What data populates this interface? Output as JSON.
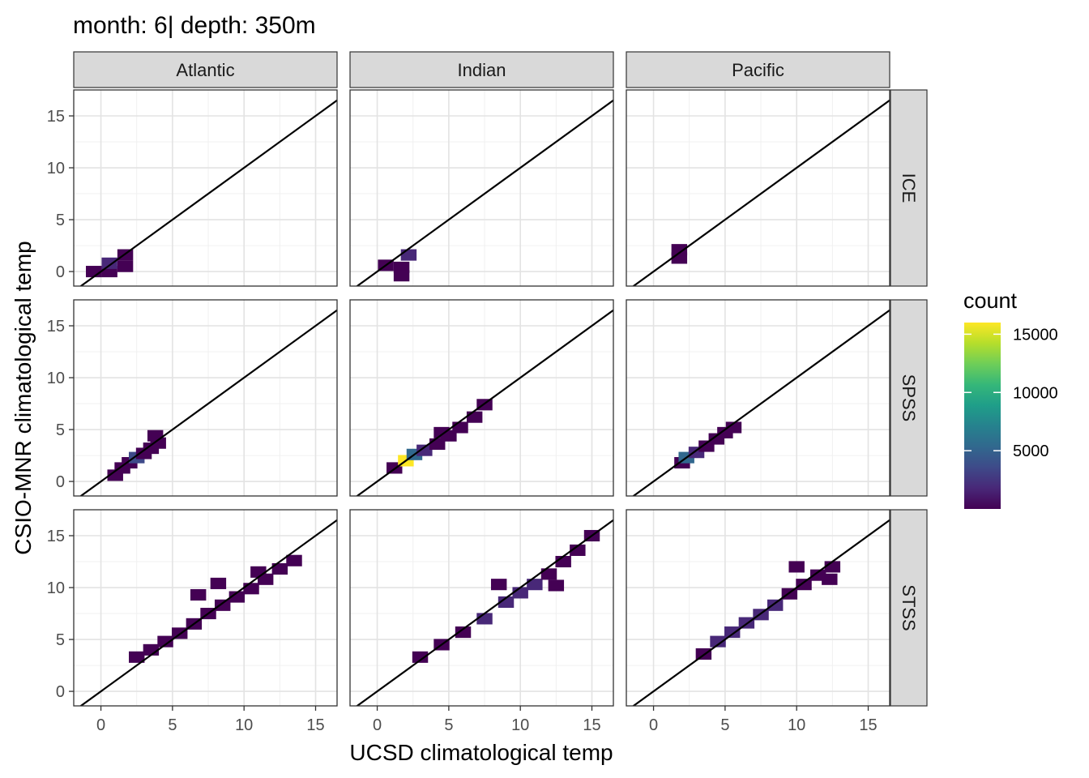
{
  "chart_data": {
    "type": "heatmap",
    "title": "month: 6| depth: 350m",
    "xlabel": "UCSD climatological temp",
    "ylabel": "CSIO-MNR climatological temp",
    "xlim": [
      -1.9,
      16.5
    ],
    "ylim": [
      -1.4,
      17.5
    ],
    "x_ticks": [
      0,
      5,
      10,
      15
    ],
    "y_ticks": [
      0,
      5,
      10,
      15
    ],
    "grid": true,
    "reference_line": "y = x",
    "bin_width": 1.1,
    "columns": [
      "Atlantic",
      "Indian",
      "Pacific"
    ],
    "rows": [
      "ICE",
      "SPSS",
      "STSS"
    ],
    "legend": {
      "title": "count",
      "position": "right",
      "min": 0,
      "max": 16000,
      "ticks": [
        5000,
        10000,
        15000
      ],
      "colors": [
        "#440154",
        "#482878",
        "#3e4a89",
        "#31688e",
        "#26828e",
        "#1f9e89",
        "#35b779",
        "#6ece58",
        "#b5de2b",
        "#fde725"
      ]
    },
    "panels": [
      {
        "row": "ICE",
        "col": "Atlantic",
        "bins": [
          [
            -0.5,
            0,
            300
          ],
          [
            0.6,
            0,
            1500
          ],
          [
            1.7,
            0.5,
            400
          ],
          [
            0.6,
            0.8,
            2500
          ],
          [
            1.7,
            1.6,
            500
          ]
        ]
      },
      {
        "row": "ICE",
        "col": "Indian",
        "bins": [
          [
            0.6,
            0.6,
            400
          ],
          [
            1.7,
            0.4,
            500
          ],
          [
            1.7,
            -0.4,
            300
          ],
          [
            2.2,
            1.6,
            2000
          ]
        ]
      },
      {
        "row": "ICE",
        "col": "Pacific",
        "bins": [
          [
            1.8,
            1.3,
            400
          ],
          [
            1.8,
            2.1,
            300
          ]
        ]
      },
      {
        "row": "SPSS",
        "col": "Atlantic",
        "bins": [
          [
            1,
            0.6,
            500
          ],
          [
            1.5,
            1.3,
            800
          ],
          [
            2,
            1.8,
            1200
          ],
          [
            2.5,
            2.3,
            4500
          ],
          [
            3,
            2.7,
            1500
          ],
          [
            3.5,
            3.2,
            1000
          ],
          [
            4,
            3.7,
            600
          ],
          [
            3.8,
            4.4,
            400
          ]
        ]
      },
      {
        "row": "SPSS",
        "col": "Indian",
        "bins": [
          [
            1.2,
            1.3,
            600
          ],
          [
            2,
            2,
            16000
          ],
          [
            2.6,
            2.6,
            5000
          ],
          [
            3.3,
            3,
            2000
          ],
          [
            4.2,
            3.6,
            1200
          ],
          [
            5,
            4.4,
            900
          ],
          [
            5.8,
            5.2,
            700
          ],
          [
            6.8,
            6.2,
            500
          ],
          [
            7.5,
            7.4,
            400
          ],
          [
            4.5,
            4.7,
            600
          ]
        ]
      },
      {
        "row": "SPSS",
        "col": "Pacific",
        "bins": [
          [
            2,
            1.8,
            1200
          ],
          [
            2.3,
            2.3,
            5000
          ],
          [
            3,
            2.8,
            1800
          ],
          [
            3.7,
            3.4,
            1000
          ],
          [
            4.4,
            4.1,
            700
          ],
          [
            5,
            4.7,
            500
          ],
          [
            5.6,
            5.2,
            300
          ]
        ]
      },
      {
        "row": "STSS",
        "col": "Atlantic",
        "bins": [
          [
            2.5,
            3.3,
            400
          ],
          [
            3.5,
            4,
            600
          ],
          [
            4.5,
            4.8,
            700
          ],
          [
            5.5,
            5.6,
            900
          ],
          [
            6.5,
            6.5,
            1100
          ],
          [
            7.5,
            7.5,
            1400
          ],
          [
            8.5,
            8.3,
            1300
          ],
          [
            9.5,
            9.1,
            1200
          ],
          [
            10.5,
            9.9,
            1000
          ],
          [
            11.5,
            10.8,
            800
          ],
          [
            12.5,
            11.8,
            600
          ],
          [
            13.5,
            12.6,
            400
          ],
          [
            6.8,
            9.3,
            700
          ],
          [
            8.2,
            10.4,
            600
          ],
          [
            11,
            11.5,
            500
          ]
        ]
      },
      {
        "row": "STSS",
        "col": "Indian",
        "bins": [
          [
            3,
            3.3,
            400
          ],
          [
            4.5,
            4.5,
            800
          ],
          [
            6,
            5.7,
            1200
          ],
          [
            7.5,
            7,
            1600
          ],
          [
            9,
            8.6,
            2200
          ],
          [
            10,
            9.5,
            2800
          ],
          [
            11,
            10.3,
            2000
          ],
          [
            12,
            11.3,
            1500
          ],
          [
            13,
            12.5,
            1100
          ],
          [
            14,
            13.6,
            900
          ],
          [
            15,
            15,
            700
          ],
          [
            8.5,
            10.3,
            600
          ],
          [
            12.5,
            10.2,
            700
          ]
        ]
      },
      {
        "row": "STSS",
        "col": "Pacific",
        "bins": [
          [
            3.5,
            3.6,
            800
          ],
          [
            4.5,
            4.8,
            1700
          ],
          [
            5.5,
            5.7,
            2800
          ],
          [
            6.5,
            6.6,
            2200
          ],
          [
            7.5,
            7.4,
            2500
          ],
          [
            8.5,
            8.3,
            1800
          ],
          [
            9.5,
            9.4,
            1300
          ],
          [
            10.5,
            10.3,
            900
          ],
          [
            11.5,
            11.2,
            700
          ],
          [
            12.5,
            12,
            500
          ],
          [
            10,
            12,
            500
          ],
          [
            12.3,
            10.8,
            500
          ]
        ]
      }
    ]
  }
}
